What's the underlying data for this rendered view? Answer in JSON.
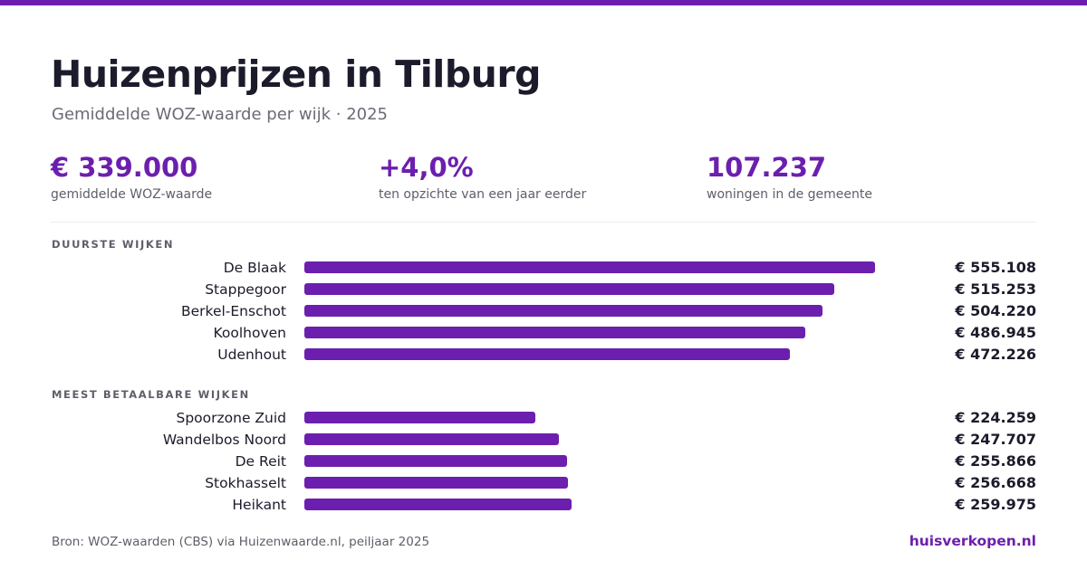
{
  "header": {
    "title": "Huizenprijzen in Tilburg",
    "subtitle": "Gemiddelde WOZ-waarde per wijk · 2025"
  },
  "stats": [
    {
      "value": "€ 339.000",
      "label": "gemiddelde WOZ-waarde"
    },
    {
      "value": "+4,0%",
      "label": "ten opzichte van een jaar eerder"
    },
    {
      "value": "107.237",
      "label": "woningen in de gemeente"
    }
  ],
  "colors": {
    "accent": "#6c1fae",
    "text": "#1b1b2b",
    "muted": "#5e5e6a"
  },
  "chart_data": [
    {
      "type": "bar",
      "orientation": "horizontal",
      "title": "DUURSTE WIJKEN",
      "categories": [
        "De Blaak",
        "Stappegoor",
        "Berkel-Enschot",
        "Koolhoven",
        "Udenhout"
      ],
      "values": [
        555108,
        515253,
        504220,
        486945,
        472226
      ],
      "value_labels": [
        "€ 555.108",
        "€ 515.253",
        "€ 504.220",
        "€ 486.945",
        "€ 472.226"
      ],
      "xlim": [
        0,
        600000
      ],
      "grid": false
    },
    {
      "type": "bar",
      "orientation": "horizontal",
      "title": "MEEST BETAALBARE WIJKEN",
      "categories": [
        "Spoorzone Zuid",
        "Wandelbos Noord",
        "De Reit",
        "Stokhasselt",
        "Heikant"
      ],
      "values": [
        224259,
        247707,
        255866,
        256668,
        259975
      ],
      "value_labels": [
        "€ 224.259",
        "€ 247.707",
        "€ 255.866",
        "€ 256.668",
        "€ 259.975"
      ],
      "xlim": [
        0,
        600000
      ],
      "grid": false
    }
  ],
  "footer": {
    "source": "Bron: WOZ-waarden (CBS) via Huizenwaarde.nl, peiljaar 2025",
    "brand": "huisverkopen.nl"
  }
}
